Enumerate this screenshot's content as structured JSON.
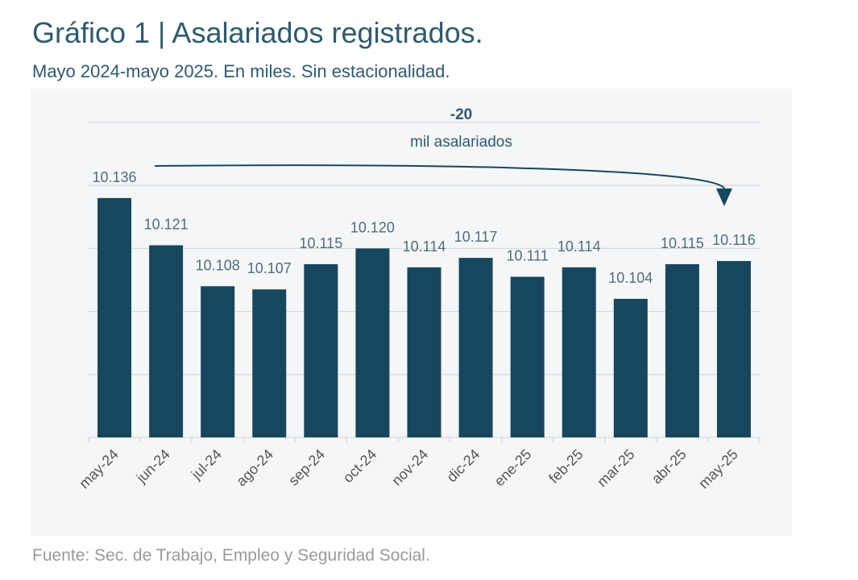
{
  "header": {
    "title": "Gráfico 1 | Asalariados registrados.",
    "subtitle": "Mayo 2024-mayo 2025. En miles. Sin estacionalidad."
  },
  "footer": {
    "source": "Fuente: Sec. de Trabajo, Empleo y Seguridad Social."
  },
  "colors": {
    "bar": "#17475e",
    "text": "#2d5a70",
    "grid": "#d6dadd",
    "label": "#4f6d7c"
  },
  "chart_data": {
    "type": "bar",
    "title": "Gráfico 1 | Asalariados registrados.",
    "xlabel": "",
    "ylabel": "",
    "grid": true,
    "categories": [
      "may-24",
      "jun-24",
      "jul-24",
      "ago-24",
      "sep-24",
      "oct-24",
      "nov-24",
      "dic-24",
      "ene-25",
      "feb-25",
      "mar-25",
      "abr-25",
      "may-25"
    ],
    "values": [
      10136,
      10121,
      10108,
      10107,
      10115,
      10120,
      10114,
      10117,
      10111,
      10114,
      10104,
      10115,
      10116
    ],
    "value_labels": [
      "10.136",
      "10.121",
      "10.108",
      "10.107",
      "10.115",
      "10.120",
      "10.114",
      "10.117",
      "10.111",
      "10.114",
      "10.104",
      "10.115",
      "10.116"
    ],
    "ylim": [
      10060,
      10160
    ],
    "annotation": {
      "value": "-20",
      "text": "mil asalariados",
      "from": "may-24",
      "to": "may-25"
    }
  }
}
